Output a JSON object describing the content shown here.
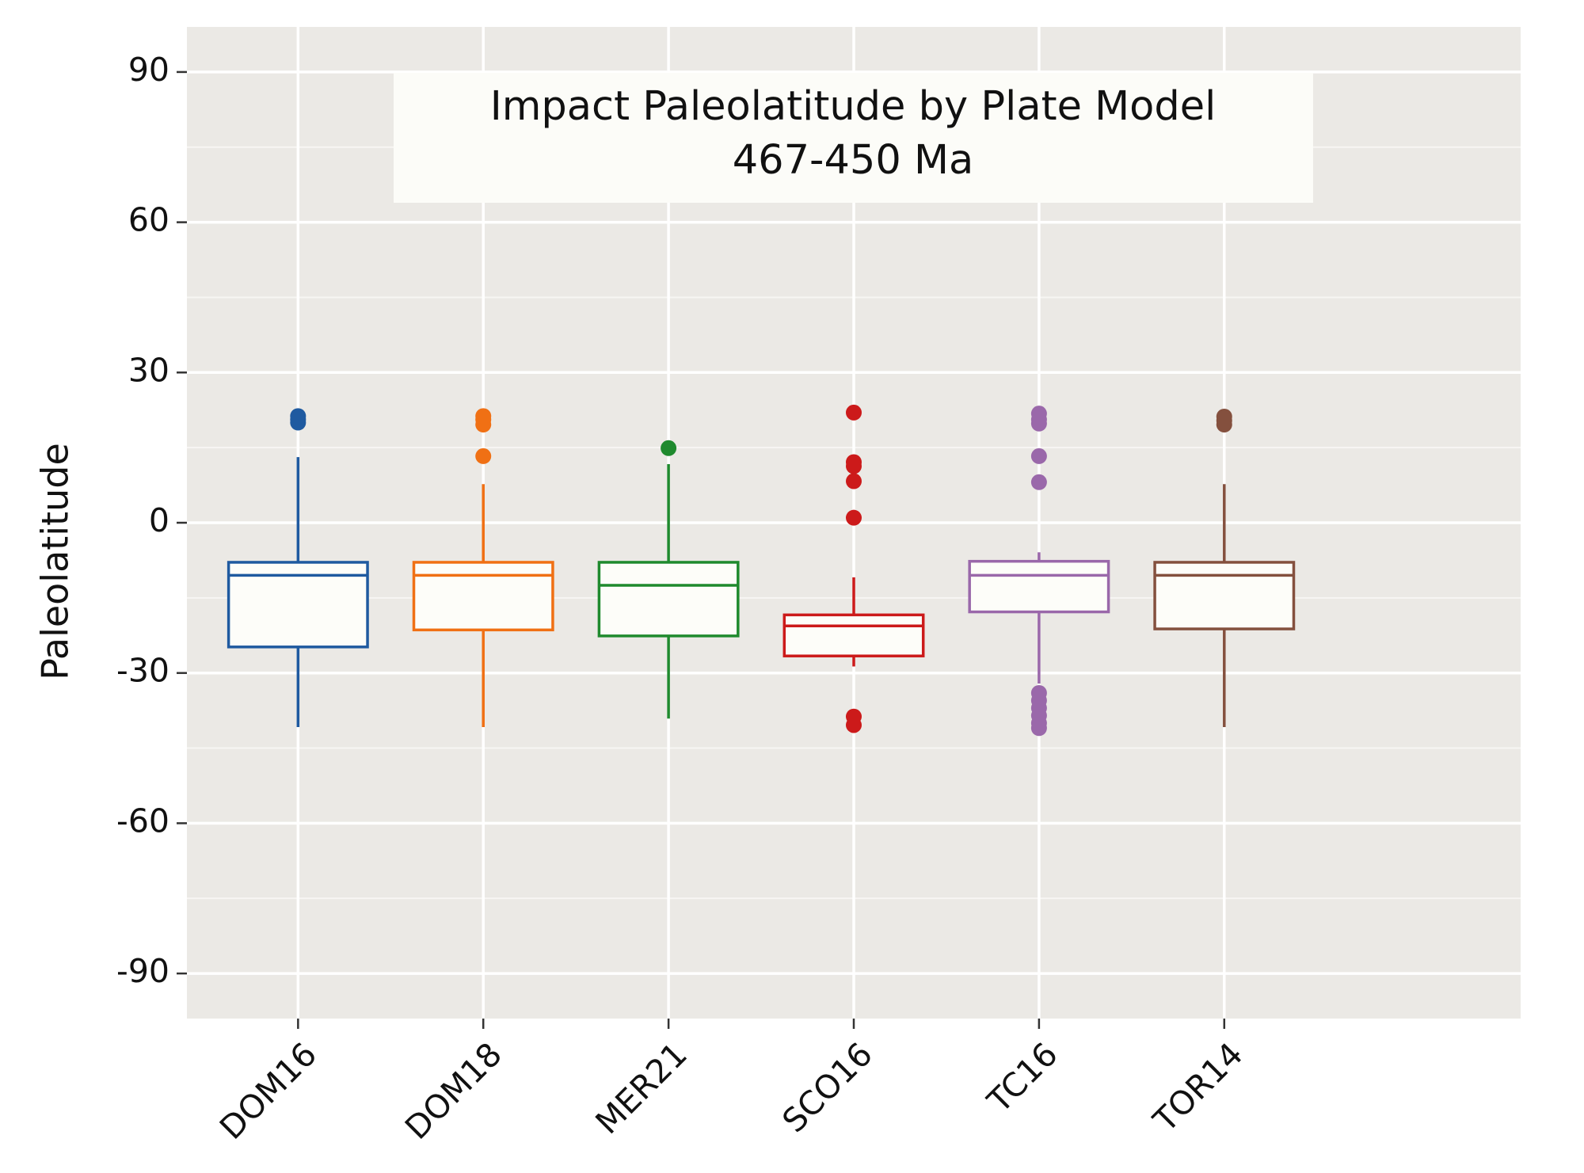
{
  "chart_data": {
    "type": "box",
    "title": "Impact Paleolatitude by Plate Model",
    "subtitle": "467-450 Ma",
    "ylabel": "Paleolatitude",
    "categories": [
      "DOM16",
      "DOM18",
      "MER21",
      "SCO16",
      "TC16",
      "TOR14"
    ],
    "boxes": [
      {
        "color": "#1f5aa0",
        "whisker_low": -40.8,
        "q1": -24.8,
        "median": -10.5,
        "q3": -7.9,
        "whisker_high": 13.1,
        "outliers": [
          20,
          20.6,
          21.3
        ]
      },
      {
        "color": "#f07014",
        "whisker_low": -40.8,
        "q1": -21.4,
        "median": -10.5,
        "q3": -7.9,
        "whisker_high": 7.7,
        "outliers": [
          13.3,
          19.6,
          20.6,
          21.3
        ]
      },
      {
        "color": "#1f8a2e",
        "whisker_low": -39.1,
        "q1": -22.6,
        "median": -12.5,
        "q3": -7.9,
        "whisker_high": 11.7,
        "outliers": [
          14.9
        ]
      },
      {
        "color": "#cc1a1a",
        "whisker_low": -28.7,
        "q1": -26.6,
        "median": -20.6,
        "q3": -18.4,
        "whisker_high": -10.9,
        "outliers": [
          22,
          12.1,
          11.3,
          8.3,
          1,
          -38.7,
          -40.4
        ]
      },
      {
        "color": "#9a68aa",
        "whisker_low": -32.1,
        "q1": -17.8,
        "median": -10.5,
        "q3": -7.7,
        "whisker_high": -5.9,
        "outliers": [
          21.8,
          20.6,
          19.8,
          13.3,
          8.1,
          -34,
          -35.5,
          -37,
          -38.5,
          -40,
          -41
        ]
      },
      {
        "color": "#84503e",
        "whisker_low": -40.8,
        "q1": -21.2,
        "median": -10.5,
        "q3": -7.9,
        "whisker_high": 7.7,
        "outliers": [
          21.2,
          20.4,
          19.6
        ]
      }
    ],
    "ylim": [
      -99,
      99
    ],
    "yticks": [
      -90,
      -60,
      -30,
      0,
      30,
      60,
      90
    ],
    "minor_yticks": [
      -75,
      -45,
      -15,
      15,
      45,
      75
    ],
    "grid": true
  }
}
